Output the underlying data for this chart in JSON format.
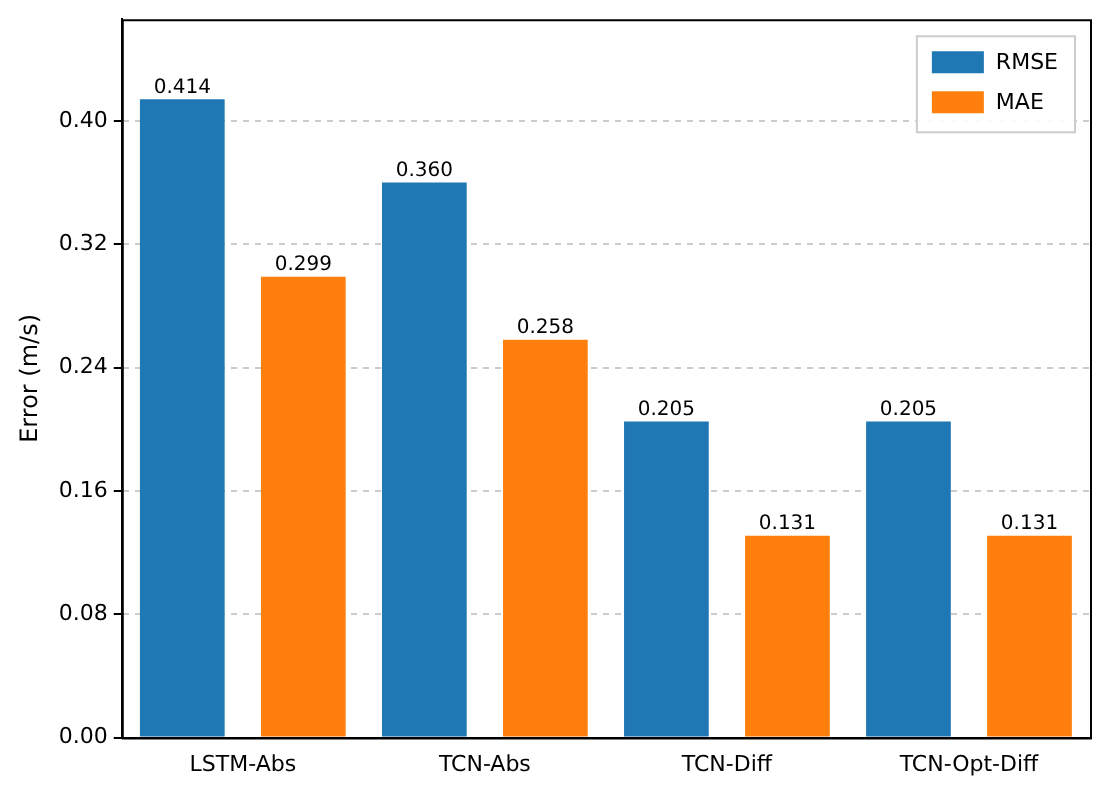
{
  "chart_data": {
    "type": "bar",
    "ylabel": "Error (m/s)",
    "categories": [
      "LSTM-Abs",
      "TCN-Abs",
      "TCN-Diff",
      "TCN-Opt-Diff"
    ],
    "series": [
      {
        "name": "RMSE",
        "color": "#1f77b4",
        "values": [
          0.414,
          0.36,
          0.205,
          0.205
        ],
        "value_labels": [
          "0.414",
          "0.360",
          "0.205",
          "0.205"
        ]
      },
      {
        "name": "MAE",
        "color": "#ff7f0e",
        "values": [
          0.299,
          0.258,
          0.131,
          0.131
        ],
        "value_labels": [
          "0.299",
          "0.258",
          "0.131",
          "0.131"
        ]
      }
    ],
    "ylim": [
      0,
      0.466
    ],
    "yticks": [
      {
        "value": 0,
        "label": "0.00"
      },
      {
        "value": 0.08,
        "label": "0.08"
      },
      {
        "value": 0.16,
        "label": "0.16"
      },
      {
        "value": 0.24,
        "label": "0.24"
      },
      {
        "value": 0.32,
        "label": "0.32"
      },
      {
        "value": 0.4,
        "label": "0.40"
      }
    ],
    "grid": "y",
    "legend": "top right"
  }
}
